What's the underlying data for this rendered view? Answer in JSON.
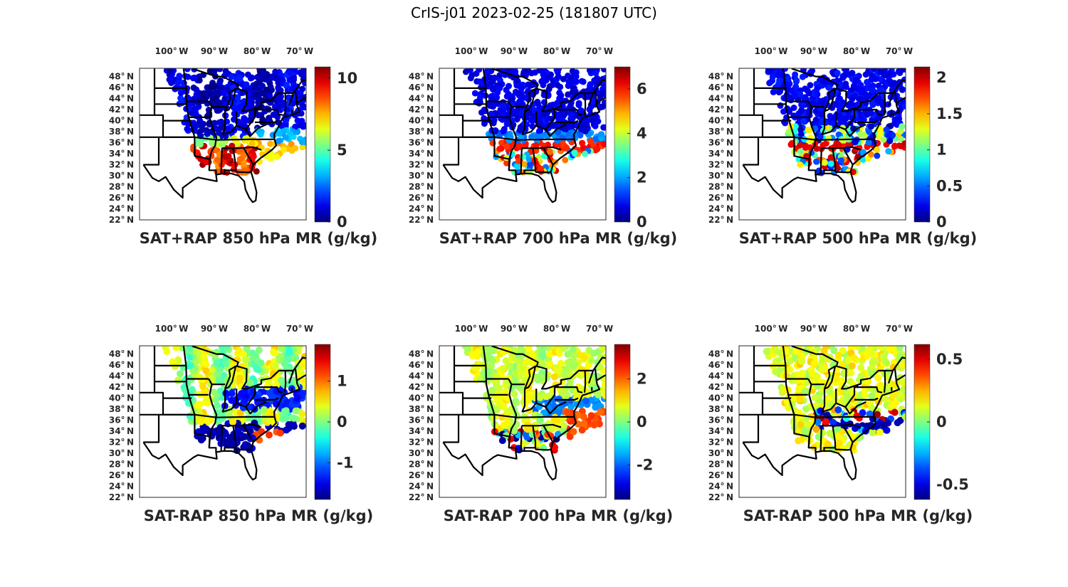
{
  "figure_title": "CrIS-j01 2023-02-25 (181807 UTC)",
  "chart_data": [
    {
      "type": "heatmap",
      "title": "SAT+RAP 850 hPa MR (g/kg)",
      "x_ticks": [
        "100° W",
        "90° W",
        "80° W",
        "70° W"
      ],
      "y_ticks": [
        "48° N",
        "46° N",
        "44° N",
        "42° N",
        "40° N",
        "38° N",
        "36° N",
        "34° N",
        "32° N",
        "30° N",
        "28° N",
        "26° N",
        "24° N",
        "22° N"
      ],
      "colorbar": {
        "range": [
          0,
          10.8
        ],
        "ticks": [
          0,
          5,
          10
        ],
        "tick_labels": [
          "0",
          "5",
          "10"
        ]
      },
      "field": "positive"
    },
    {
      "type": "heatmap",
      "title": "SAT+RAP 700 hPa MR (g/kg)",
      "x_ticks": [
        "100° W",
        "90° W",
        "80° W",
        "70° W"
      ],
      "y_ticks": [
        "48° N",
        "46° N",
        "44° N",
        "42° N",
        "40° N",
        "38° N",
        "36° N",
        "34° N",
        "32° N",
        "30° N",
        "28° N",
        "26° N",
        "24° N",
        "22° N"
      ],
      "colorbar": {
        "range": [
          0,
          7
        ],
        "ticks": [
          0,
          2,
          4,
          6
        ],
        "tick_labels": [
          "0",
          "2",
          "4",
          "6"
        ]
      },
      "field": "positive"
    },
    {
      "type": "heatmap",
      "title": "SAT+RAP 500 hPa MR (g/kg)",
      "x_ticks": [
        "100° W",
        "90° W",
        "80° W",
        "70° W"
      ],
      "y_ticks": [
        "48° N",
        "46° N",
        "44° N",
        "42° N",
        "40° N",
        "38° N",
        "36° N",
        "34° N",
        "32° N",
        "30° N",
        "28° N",
        "26° N",
        "24° N",
        "22° N"
      ],
      "colorbar": {
        "range": [
          0,
          2.15
        ],
        "ticks": [
          0,
          0.5,
          1,
          1.5,
          2
        ],
        "tick_labels": [
          "0",
          "0.5",
          "1",
          "1.5",
          "2"
        ]
      },
      "field": "positive"
    },
    {
      "type": "heatmap",
      "title": "SAT-RAP 850 hPa MR (g/kg)",
      "x_ticks": [
        "100° W",
        "90° W",
        "80° W",
        "70° W"
      ],
      "y_ticks": [
        "48° N",
        "46° N",
        "44° N",
        "42° N",
        "40° N",
        "38° N",
        "36° N",
        "34° N",
        "32° N",
        "30° N",
        "28° N",
        "26° N",
        "24° N",
        "22° N"
      ],
      "colorbar": {
        "range": [
          -1.9,
          1.9
        ],
        "ticks": [
          -1,
          0,
          1
        ],
        "tick_labels": [
          "-1",
          "0",
          "1"
        ]
      },
      "field": "diff"
    },
    {
      "type": "heatmap",
      "title": "SAT-RAP 700 hPa MR (g/kg)",
      "x_ticks": [
        "100° W",
        "90° W",
        "80° W",
        "70° W"
      ],
      "y_ticks": [
        "48° N",
        "46° N",
        "44° N",
        "42° N",
        "40° N",
        "38° N",
        "36° N",
        "34° N",
        "32° N",
        "30° N",
        "28° N",
        "26° N",
        "24° N",
        "22° N"
      ],
      "colorbar": {
        "range": [
          -3.6,
          3.6
        ],
        "ticks": [
          -2,
          0,
          2
        ],
        "tick_labels": [
          "-2",
          "0",
          "2"
        ]
      },
      "field": "diff"
    },
    {
      "type": "heatmap",
      "title": "SAT-RAP 500 hPa MR (g/kg)",
      "x_ticks": [
        "100° W",
        "90° W",
        "80° W",
        "70° W"
      ],
      "y_ticks": [
        "48° N",
        "46° N",
        "44° N",
        "42° N",
        "40° N",
        "38° N",
        "36° N",
        "34° N",
        "32° N",
        "30° N",
        "28° N",
        "26° N",
        "24° N",
        "22° N"
      ],
      "colorbar": {
        "range": [
          -0.62,
          0.62
        ],
        "ticks": [
          -0.5,
          0,
          0.5
        ],
        "tick_labels": [
          "-0.5",
          "0",
          "0.5"
        ]
      },
      "field": "diff"
    }
  ]
}
